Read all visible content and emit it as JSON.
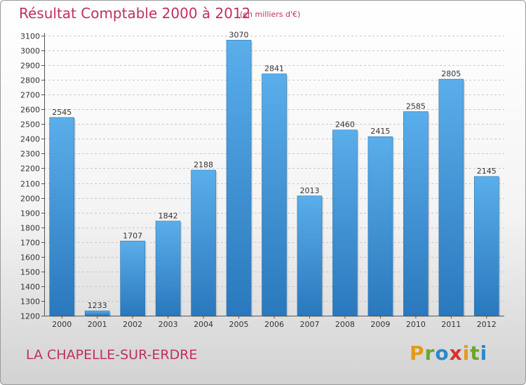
{
  "chart_data": {
    "type": "bar",
    "title": "Résultat Comptable 2000 à 2012",
    "unit_note": "(en milliers d'€)",
    "categories": [
      "2000",
      "2001",
      "2002",
      "2003",
      "2004",
      "2005",
      "2006",
      "2007",
      "2008",
      "2009",
      "2010",
      "2011",
      "2012"
    ],
    "values": [
      2545,
      1233,
      1707,
      1842,
      2188,
      3070,
      2841,
      2013,
      2460,
      2415,
      2585,
      2805,
      2145
    ],
    "data_labels": [
      "2545",
      "1233",
      "1707",
      "1842",
      "2188",
      "3070",
      "2841",
      "2013",
      "2460",
      "2415",
      "2585",
      "2805",
      "2145"
    ],
    "ylim": [
      1200,
      3100
    ],
    "yticks": [
      1200,
      1300,
      1400,
      1500,
      1600,
      1700,
      1800,
      1900,
      2000,
      2100,
      2200,
      2300,
      2400,
      2500,
      2600,
      2700,
      2800,
      2900,
      3000,
      3100
    ],
    "ytick_labels": [
      "1200",
      "1300",
      "1400",
      "1500",
      "1600",
      "1700",
      "1800",
      "1900",
      "2000",
      "2100",
      "2200",
      "2300",
      "2400",
      "2500",
      "2600",
      "2700",
      "2800",
      "2900",
      "3000",
      "3100"
    ],
    "grid": true,
    "xlabel": "",
    "ylabel": "",
    "bar_color_top": "#5aaeea",
    "bar_color_bottom": "#2a78bd"
  },
  "footer": {
    "place": "LA CHAPELLE-SUR-ERDRE",
    "brand_letters": [
      "P",
      "r",
      "o",
      "x",
      "i",
      "t",
      "i"
    ],
    "brand_name": "Proxiti"
  }
}
